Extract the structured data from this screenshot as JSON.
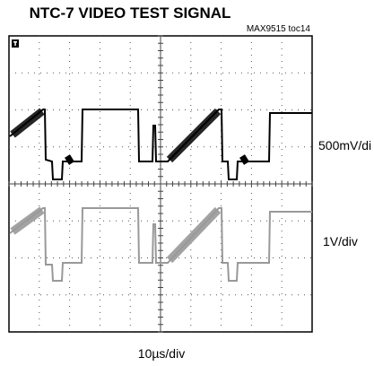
{
  "title": "NTC-7 VIDEO TEST SIGNAL",
  "figure_id": "MAX9515 toc14",
  "channel_1_scale": "500mV/di",
  "channel_2_scale": "1V/div",
  "time_scale": "10µs/div"
}
